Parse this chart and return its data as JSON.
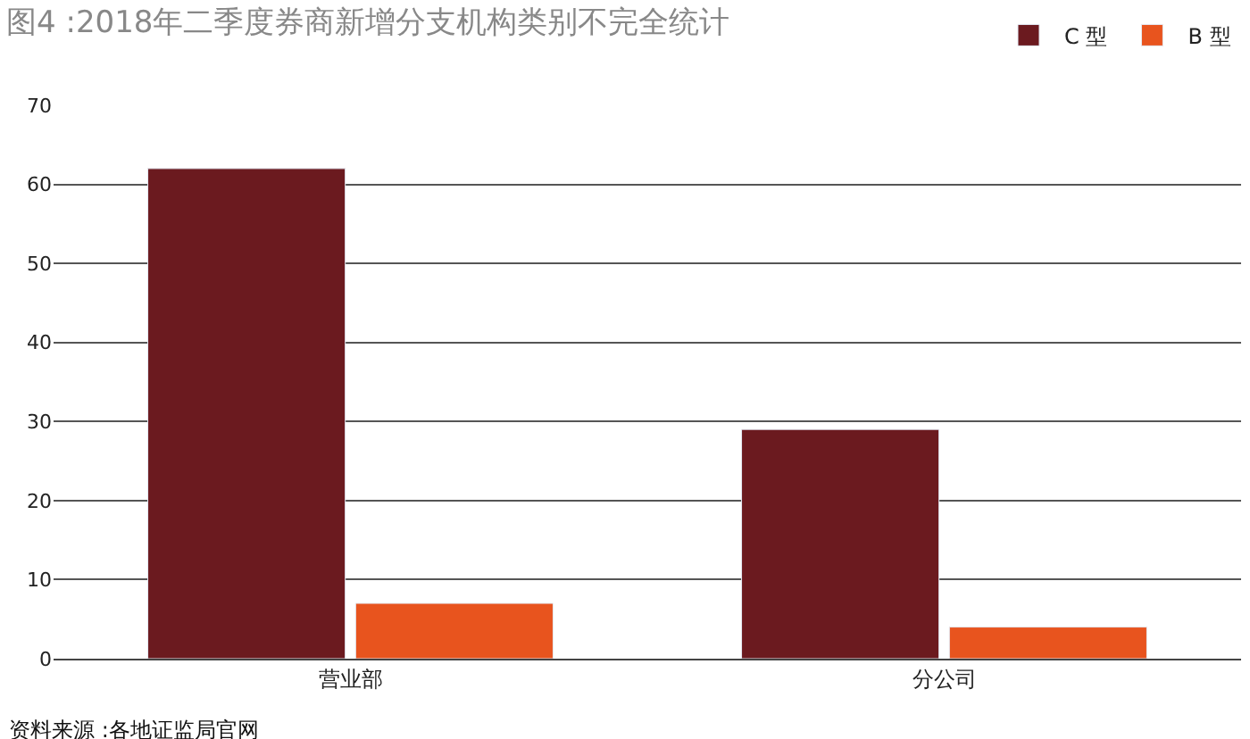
{
  "chart_data": {
    "type": "bar",
    "title": "图4 :2018年二季度券商新增分支机构类别不完全统计",
    "categories": [
      "营业部",
      "分公司"
    ],
    "series": [
      {
        "name": "C 型",
        "color": "#6b1a1f",
        "values": [
          62,
          29
        ]
      },
      {
        "name": "B 型",
        "color": "#e8541e",
        "values": [
          7,
          4
        ]
      }
    ],
    "ylim": [
      0,
      70
    ],
    "yticks": [
      0,
      10,
      20,
      30,
      40,
      50,
      60,
      70
    ],
    "grid": "y",
    "legend": "top right",
    "annotations": [
      "资料来源 :各地证监局官网"
    ]
  }
}
